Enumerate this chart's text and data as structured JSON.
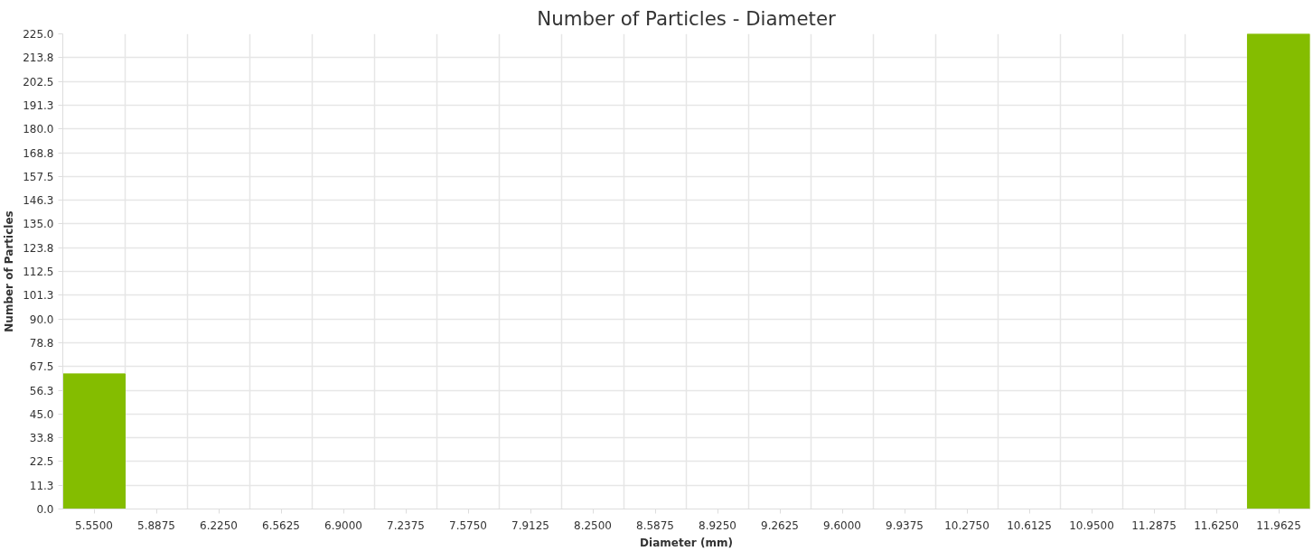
{
  "chart_data": {
    "type": "bar",
    "title": "Number of Particles - Diameter",
    "xlabel": "Diameter (mm)",
    "ylabel": "Number of Particles",
    "categories": [
      "5.5500",
      "5.8875",
      "6.2250",
      "6.5625",
      "6.9000",
      "7.2375",
      "7.5750",
      "7.9125",
      "8.2500",
      "8.5875",
      "8.9250",
      "9.2625",
      "9.6000",
      "9.9375",
      "10.2750",
      "10.6125",
      "10.9500",
      "11.2875",
      "11.6250",
      "11.9625"
    ],
    "series": [
      {
        "color": "#84bd00",
        "values": [
          64,
          0,
          0,
          0,
          0,
          0,
          0,
          0,
          0,
          0,
          0,
          0,
          0,
          0,
          0,
          0,
          0,
          0,
          0,
          225
        ]
      }
    ],
    "ylim": [
      0,
      225
    ],
    "yticks": [
      {
        "value": 0,
        "label": "0.0"
      },
      {
        "value": 11.25,
        "label": "11.3"
      },
      {
        "value": 22.5,
        "label": "22.5"
      },
      {
        "value": 33.75,
        "label": "33.8"
      },
      {
        "value": 45,
        "label": "45.0"
      },
      {
        "value": 56.25,
        "label": "56.3"
      },
      {
        "value": 67.5,
        "label": "67.5"
      },
      {
        "value": 78.75,
        "label": "78.8"
      },
      {
        "value": 90,
        "label": "90.0"
      },
      {
        "value": 101.25,
        "label": "101.3"
      },
      {
        "value": 112.5,
        "label": "112.5"
      },
      {
        "value": 123.75,
        "label": "123.8"
      },
      {
        "value": 135,
        "label": "135.0"
      },
      {
        "value": 146.25,
        "label": "146.3"
      },
      {
        "value": 157.5,
        "label": "157.5"
      },
      {
        "value": 168.75,
        "label": "168.8"
      },
      {
        "value": 180,
        "label": "180.0"
      },
      {
        "value": 191.25,
        "label": "191.3"
      },
      {
        "value": 202.5,
        "label": "202.5"
      },
      {
        "value": 213.75,
        "label": "213.8"
      },
      {
        "value": 225,
        "label": "225.0"
      }
    ],
    "grid": true
  }
}
